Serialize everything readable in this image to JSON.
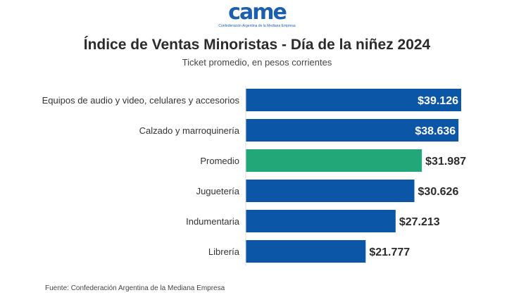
{
  "logo": {
    "text": "came",
    "tagline": "Confederación Argentina de la Mediana Empresa"
  },
  "chart_data": {
    "type": "bar",
    "orientation": "horizontal",
    "title": "Índice de Ventas Minoristas - Día de la niñez 2024",
    "subtitle": "Ticket promedio, en pesos corrientes",
    "categories": [
      "Equipos de audio y video, celulares y accesorios",
      "Calzado y marroquinería",
      "Promedio",
      "Juguetería",
      "Indumentaria",
      "Librería"
    ],
    "values": [
      39126,
      38636,
      31987,
      30626,
      27213,
      21777
    ],
    "data_labels": [
      "$39.126",
      "$38.636",
      "$31.987",
      "$30.626",
      "$27.213",
      "$21.777"
    ],
    "colors": [
      "#0b56a6",
      "#0b56a6",
      "#22a878",
      "#0b56a6",
      "#0b56a6",
      "#0b56a6"
    ],
    "xlim": [
      0,
      39126
    ],
    "grid": false,
    "legend": "none"
  },
  "source": "Fuente: Confederación Argentina de la Mediana Empresa"
}
